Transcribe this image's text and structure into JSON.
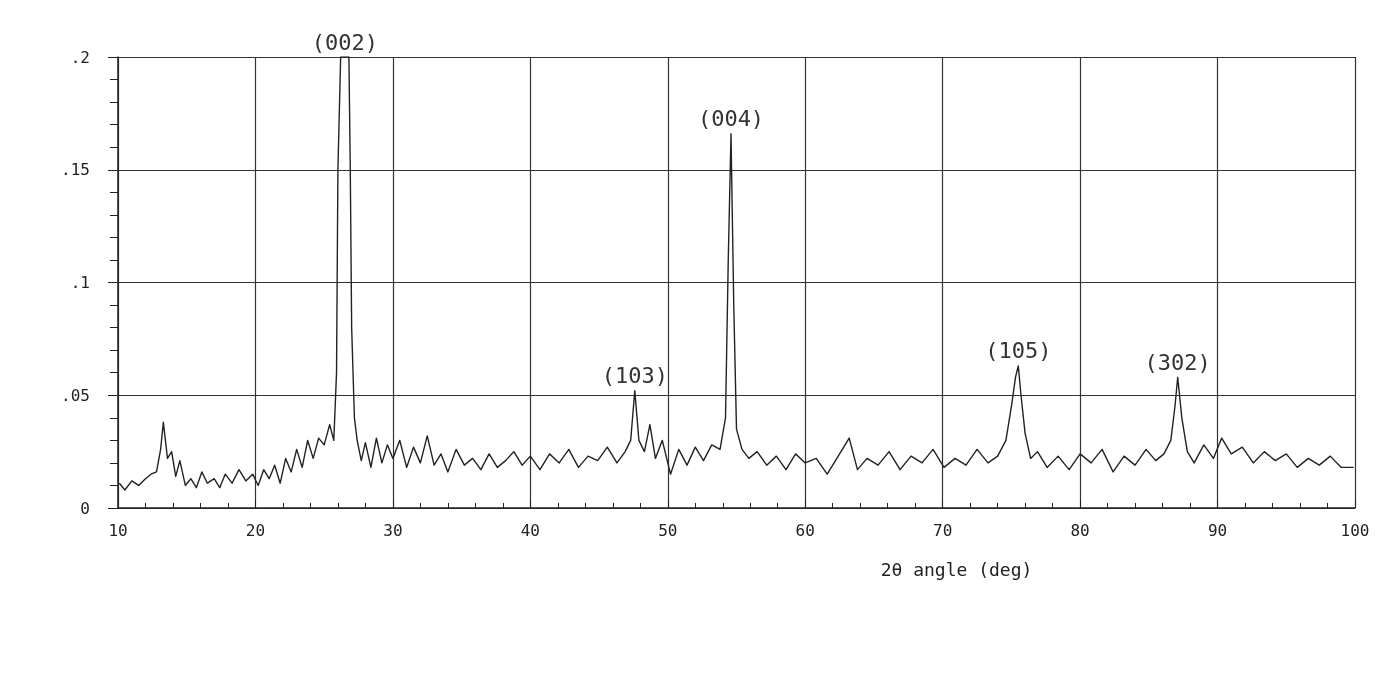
{
  "chart_data": {
    "type": "line",
    "xlabel": "2θ angle (deg)",
    "xlim": [
      10,
      100
    ],
    "xticks": [
      10,
      20,
      30,
      40,
      50,
      60,
      70,
      80,
      90,
      100
    ],
    "ylim": [
      0,
      0.2
    ],
    "yticks": [
      {
        "value": 0,
        "label": "0"
      },
      {
        "value": 0.05,
        "label": ".05"
      },
      {
        "value": 0.1,
        "label": ".1"
      },
      {
        "value": 0.15,
        "label": ".15"
      },
      {
        "value": 0.2,
        "label": ".2"
      }
    ],
    "grid": true,
    "marker": "none",
    "line_style": "solid",
    "series": [
      {
        "color": "#222222",
        "x": [
          10.1,
          10.5,
          11.0,
          11.5,
          12.0,
          12.4,
          12.8,
          13.1,
          13.3,
          13.6,
          13.9,
          14.2,
          14.5,
          14.9,
          15.3,
          15.7,
          16.1,
          16.5,
          17.0,
          17.4,
          17.8,
          18.3,
          18.8,
          19.3,
          19.8,
          20.2,
          20.6,
          21.0,
          21.4,
          21.8,
          22.2,
          22.6,
          23.0,
          23.4,
          23.8,
          24.2,
          24.6,
          25.0,
          25.4,
          25.7,
          25.9,
          26.0,
          26.2,
          26.8,
          26.9,
          27.0,
          27.2,
          27.4,
          27.7,
          28.0,
          28.4,
          28.8,
          29.2,
          29.6,
          30.0,
          30.5,
          31.0,
          31.5,
          32.0,
          32.5,
          33.0,
          33.5,
          34.0,
          34.6,
          35.2,
          35.8,
          36.4,
          37.0,
          37.6,
          38.2,
          38.8,
          39.4,
          40.0,
          40.7,
          41.4,
          42.1,
          42.8,
          43.5,
          44.2,
          44.9,
          45.6,
          46.3,
          46.9,
          47.3,
          47.6,
          47.9,
          48.3,
          48.7,
          49.1,
          49.6,
          50.2,
          50.8,
          51.4,
          52.0,
          52.6,
          53.2,
          53.8,
          54.2,
          54.4,
          54.6,
          54.8,
          55.0,
          55.4,
          55.9,
          56.5,
          57.2,
          57.9,
          58.6,
          59.3,
          60.0,
          60.8,
          61.6,
          62.4,
          63.2,
          63.8,
          64.5,
          65.3,
          66.1,
          66.9,
          67.7,
          68.5,
          69.3,
          70.1,
          70.9,
          71.7,
          72.5,
          73.3,
          74.0,
          74.6,
          75.0,
          75.3,
          75.5,
          75.7,
          76.0,
          76.4,
          76.9,
          77.6,
          78.4,
          79.2,
          80.0,
          80.8,
          81.6,
          82.4,
          83.2,
          84.0,
          84.8,
          85.5,
          86.1,
          86.6,
          86.9,
          87.1,
          87.4,
          87.8,
          88.3,
          89.0,
          89.7,
          90.3,
          91.0,
          91.8,
          92.6,
          93.4,
          94.2,
          95.0,
          95.8,
          96.6,
          97.4,
          98.2,
          99.0,
          99.9
        ],
        "values": [
          0.011,
          0.008,
          0.012,
          0.01,
          0.013,
          0.015,
          0.016,
          0.026,
          0.038,
          0.022,
          0.025,
          0.014,
          0.021,
          0.01,
          0.013,
          0.009,
          0.016,
          0.011,
          0.013,
          0.009,
          0.015,
          0.011,
          0.017,
          0.012,
          0.015,
          0.01,
          0.017,
          0.013,
          0.019,
          0.011,
          0.022,
          0.016,
          0.026,
          0.018,
          0.03,
          0.022,
          0.031,
          0.028,
          0.037,
          0.03,
          0.06,
          0.15,
          0.2,
          0.2,
          0.15,
          0.08,
          0.04,
          0.03,
          0.021,
          0.029,
          0.018,
          0.031,
          0.02,
          0.028,
          0.022,
          0.03,
          0.018,
          0.027,
          0.02,
          0.032,
          0.019,
          0.024,
          0.016,
          0.026,
          0.019,
          0.022,
          0.017,
          0.024,
          0.018,
          0.021,
          0.025,
          0.019,
          0.023,
          0.017,
          0.024,
          0.02,
          0.026,
          0.018,
          0.023,
          0.021,
          0.027,
          0.02,
          0.025,
          0.03,
          0.052,
          0.03,
          0.025,
          0.037,
          0.022,
          0.03,
          0.015,
          0.026,
          0.019,
          0.027,
          0.021,
          0.028,
          0.026,
          0.04,
          0.11,
          0.166,
          0.09,
          0.035,
          0.026,
          0.022,
          0.025,
          0.019,
          0.023,
          0.017,
          0.024,
          0.02,
          0.022,
          0.015,
          0.023,
          0.031,
          0.017,
          0.022,
          0.019,
          0.025,
          0.017,
          0.023,
          0.02,
          0.026,
          0.018,
          0.022,
          0.019,
          0.026,
          0.02,
          0.023,
          0.03,
          0.045,
          0.058,
          0.063,
          0.05,
          0.033,
          0.022,
          0.025,
          0.018,
          0.023,
          0.017,
          0.024,
          0.02,
          0.026,
          0.016,
          0.023,
          0.019,
          0.026,
          0.021,
          0.024,
          0.03,
          0.045,
          0.058,
          0.04,
          0.025,
          0.02,
          0.028,
          0.022,
          0.031,
          0.024,
          0.027,
          0.02,
          0.025,
          0.021,
          0.024,
          0.018,
          0.022,
          0.019,
          0.023,
          0.018,
          0.018
        ]
      }
    ],
    "annotations": [
      {
        "text": "(002)",
        "x": 26.5,
        "y": 0.2
      },
      {
        "text": "(004)",
        "x": 54.6,
        "y": 0.166
      },
      {
        "text": "(103)",
        "x": 47.6,
        "y": 0.052
      },
      {
        "text": "(105)",
        "x": 75.5,
        "y": 0.063
      },
      {
        "text": "(302)",
        "x": 87.1,
        "y": 0.058
      }
    ]
  }
}
